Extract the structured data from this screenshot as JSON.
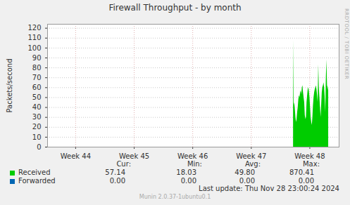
{
  "chart_data": {
    "type": "area",
    "title": "Firewall Throughput - by month",
    "y_label": "Packets/second",
    "watermark": "RRDTOOL / TOBI OETIKER",
    "grid": true,
    "xlim": [
      43.52,
      48.5
    ],
    "xticks": [
      {
        "value": 44,
        "label": "Week 44"
      },
      {
        "value": 45,
        "label": "Week 45"
      },
      {
        "value": 46,
        "label": "Week 46"
      },
      {
        "value": 47,
        "label": "Week 47"
      },
      {
        "value": 48,
        "label": "Week 48"
      }
    ],
    "ylim": [
      0,
      124
    ],
    "yticks": [
      0,
      10,
      20,
      30,
      40,
      50,
      60,
      70,
      80,
      90,
      100,
      110,
      120
    ],
    "x": [
      47.72,
      47.73,
      47.74,
      47.75,
      47.76,
      47.77,
      47.78,
      47.79,
      47.8,
      47.81,
      47.82,
      47.83,
      47.84,
      47.85,
      47.86,
      47.87,
      47.88,
      47.89,
      47.9,
      47.91,
      47.92,
      47.93,
      47.94,
      47.95,
      47.96,
      47.97,
      47.98,
      47.99,
      48.0,
      48.01,
      48.02,
      48.03,
      48.04,
      48.05,
      48.06,
      48.07,
      48.08,
      48.09,
      48.1,
      48.11,
      48.12,
      48.13,
      48.14,
      48.15,
      48.16,
      48.17,
      48.18,
      48.19,
      48.2,
      48.21,
      48.22,
      48.23,
      48.24,
      48.25,
      48.26,
      48.27,
      48.28,
      48.29,
      48.3,
      48.31,
      48.32
    ],
    "series": [
      {
        "name": "Received",
        "color": "#00cc00",
        "values": [
          108,
          42,
          45,
          38,
          30,
          25,
          28,
          35,
          40,
          48,
          52,
          50,
          55,
          57,
          53,
          60,
          62,
          55,
          50,
          45,
          32,
          28,
          30,
          45,
          52,
          58,
          60,
          56,
          50,
          40,
          30,
          25,
          22,
          30,
          42,
          50,
          55,
          58,
          60,
          62,
          58,
          52,
          45,
          83,
          60,
          50,
          40,
          30,
          42,
          55,
          60,
          62,
          65,
          60,
          50,
          35,
          70,
          88,
          62,
          60,
          57
        ]
      }
    ],
    "legend_table": {
      "columns": [
        "Cur:",
        "Min:",
        "Avg:",
        "Max:"
      ],
      "rows": [
        {
          "name": "Received",
          "color": "#00cc00",
          "values": [
            "57.14",
            "18.03",
            "49.80",
            "870.41"
          ]
        },
        {
          "name": "Forwarded",
          "color": "#0066b3",
          "values": [
            "0.00",
            "0.00",
            "0.00",
            "0.00"
          ]
        }
      ]
    },
    "last_update": "Last update: Thu Nov 28 23:00:24 2024",
    "footer": "Munin 2.0.37-1ubuntu0.1"
  }
}
